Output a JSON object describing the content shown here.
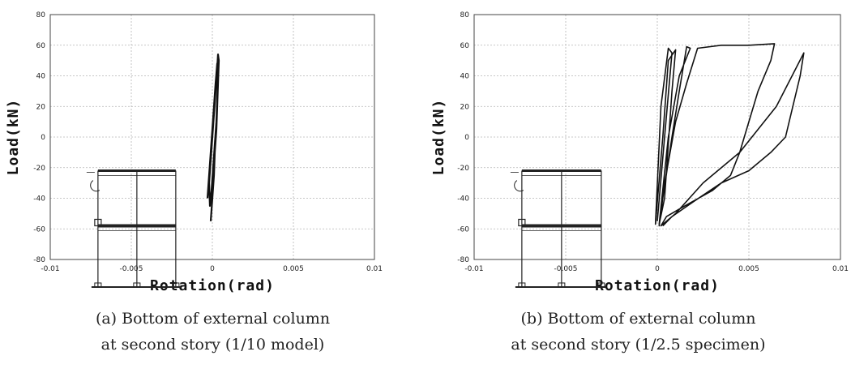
{
  "chart_data": [
    {
      "type": "line",
      "xlabel": "Rotation(rad)",
      "ylabel": "Load(kN)",
      "xlim": [
        -0.01,
        0.01
      ],
      "ylim": [
        -80,
        80
      ],
      "x_ticks": [
        "-0.01",
        "-0.005",
        "0",
        "0.005",
        "0.01"
      ],
      "y_ticks": [
        "80",
        "60",
        "40",
        "20",
        "0",
        "-20",
        "-40",
        "-60",
        "-80"
      ],
      "grid": true,
      "caption_line1": "(a) Bottom of external column",
      "caption_line2": "at second story (1/10 model)",
      "series": [
        {
          "color": "#111111",
          "x": [
            -0.0001,
            0.0,
            0.0001,
            0.00015,
            0.00025,
            0.0003,
            0.00035,
            0.0004,
            0.00035,
            0.0003,
            0.0002,
            0.0001,
            0.0,
            -0.0001,
            -0.0002,
            -0.00015,
            -5e-05,
            5e-05,
            0.00015,
            0.00025,
            0.0003,
            0.00035,
            0.0003,
            0.0002,
            0.0001,
            0.0,
            -0.0001,
            -0.0002,
            -0.0003
          ],
          "y": [
            -55,
            -40,
            -25,
            -10,
            5,
            20,
            35,
            50,
            54,
            45,
            30,
            15,
            0,
            -15,
            -30,
            -45,
            -35,
            -20,
            -5,
            10,
            25,
            40,
            48,
            35,
            20,
            5,
            -10,
            -25,
            -40
          ]
        }
      ]
    },
    {
      "type": "line",
      "xlabel": "Rotation(rad)",
      "ylabel": "Load(kN)",
      "xlim": [
        -0.01,
        0.01
      ],
      "ylim": [
        -80,
        80
      ],
      "x_ticks": [
        "-0.01",
        "-0.005",
        "0",
        "0.005",
        "0.01"
      ],
      "y_ticks": [
        "80",
        "60",
        "40",
        "20",
        "0",
        "-20",
        "-40",
        "-60",
        "-80"
      ],
      "grid": true,
      "caption_line1": "(b) Bottom of external column",
      "caption_line2": "at second story (1/2.5 specimen)",
      "series": [
        {
          "color": "#111111",
          "x": [
            0.0,
            0.0004,
            0.0008,
            0.0006,
            0.0002,
            -0.0001,
            0.0003,
            0.0006,
            0.001,
            0.0008,
            0.0004,
            0.0001,
            0.0006,
            0.0012,
            0.0018,
            0.0016,
            0.0012,
            0.0008,
            0.0003,
            0.0001,
            0.0004,
            0.001,
            0.0016,
            0.0022,
            0.0035,
            0.005,
            0.0064,
            0.0062,
            0.0055,
            0.005,
            0.0045,
            0.004,
            0.003,
            0.0015,
            0.0005,
            0.0002,
            0.001,
            0.0025,
            0.0045,
            0.0065,
            0.008,
            0.0078,
            0.0074,
            0.007,
            0.0062,
            0.005,
            0.0035,
            0.002,
            0.0008,
            0.0003
          ],
          "y": [
            -55,
            0,
            55,
            58,
            20,
            -57,
            0,
            50,
            57,
            30,
            -40,
            -57,
            0,
            40,
            58,
            59,
            30,
            0,
            -40,
            -58,
            -30,
            10,
            35,
            58,
            60,
            60,
            61,
            50,
            30,
            10,
            -10,
            -25,
            -35,
            -45,
            -52,
            -58,
            -50,
            -30,
            -10,
            20,
            55,
            40,
            20,
            0,
            -10,
            -22,
            -30,
            -42,
            -52,
            -58
          ]
        }
      ]
    }
  ]
}
